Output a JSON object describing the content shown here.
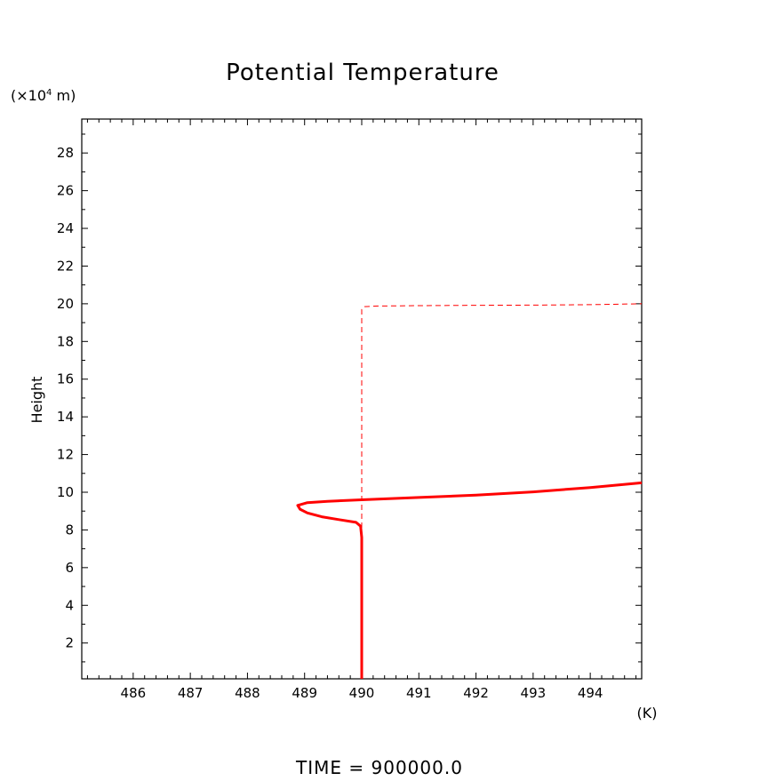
{
  "chart_data": {
    "type": "line",
    "title": "Potential Temperature",
    "xlabel": "(K)",
    "ylabel": "Height",
    "yunit_prefix": "(×10",
    "yunit_exp": "4",
    "yunit_suffix": " m)",
    "footer": "TIME = 900000.0",
    "xlim": [
      485.1,
      494.9
    ],
    "ylim": [
      0.1,
      29.8
    ],
    "x_ticks": [
      486,
      487,
      488,
      489,
      490,
      491,
      492,
      493,
      494
    ],
    "y_ticks": [
      2,
      4,
      6,
      8,
      10,
      12,
      14,
      16,
      18,
      20,
      22,
      24,
      26,
      28
    ],
    "grid": false,
    "line_color": "#ff0000",
    "series": [
      {
        "style": "solid",
        "points": [
          [
            490.0,
            0.1
          ],
          [
            490.0,
            3.0
          ],
          [
            490.0,
            6.0
          ],
          [
            490.0,
            7.6
          ],
          [
            489.98,
            8.2
          ],
          [
            489.9,
            8.4
          ],
          [
            489.6,
            8.55
          ],
          [
            489.3,
            8.7
          ],
          [
            489.05,
            8.9
          ],
          [
            488.92,
            9.1
          ],
          [
            488.88,
            9.3
          ],
          [
            489.05,
            9.45
          ],
          [
            489.4,
            9.52
          ],
          [
            490.0,
            9.6
          ],
          [
            491.0,
            9.72
          ],
          [
            492.0,
            9.85
          ],
          [
            493.0,
            10.02
          ],
          [
            494.0,
            10.25
          ],
          [
            494.9,
            10.5
          ]
        ]
      },
      {
        "style": "dashed",
        "points": [
          [
            490.0,
            0.1
          ],
          [
            490.0,
            5.0
          ],
          [
            490.0,
            10.0
          ],
          [
            490.0,
            15.0
          ],
          [
            490.0,
            19.7
          ],
          [
            490.05,
            19.85
          ],
          [
            490.3,
            19.88
          ],
          [
            491.0,
            19.9
          ],
          [
            492.0,
            19.92
          ],
          [
            493.0,
            19.93
          ],
          [
            494.0,
            19.95
          ],
          [
            494.9,
            20.0
          ]
        ]
      }
    ]
  }
}
